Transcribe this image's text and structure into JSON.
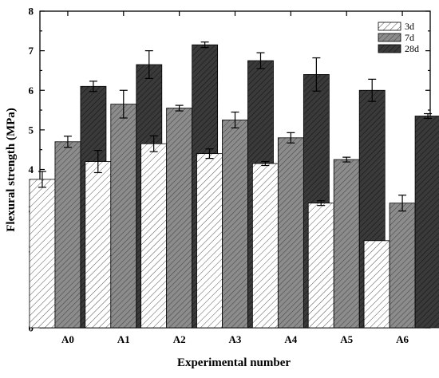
{
  "chart_data": {
    "type": "bar",
    "categories": [
      "A0",
      "A1",
      "A2",
      "A3",
      "A4",
      "A5",
      "A6"
    ],
    "series": [
      {
        "name": "3d",
        "values": [
          3.75,
          4.2,
          4.65,
          4.4,
          4.15,
          3.15,
          2.2
        ],
        "errors": [
          0.2,
          0.28,
          0.2,
          0.12,
          0.05,
          0.06,
          0.0
        ],
        "fill": "hatch-light",
        "color": "#ffffff"
      },
      {
        "name": "7d",
        "values": [
          4.7,
          5.65,
          5.55,
          5.25,
          4.8,
          4.25,
          3.15
        ],
        "errors": [
          0.14,
          0.35,
          0.07,
          0.2,
          0.13,
          0.06,
          0.2
        ],
        "fill": "hatch-medium",
        "color": "#8c8c8c"
      },
      {
        "name": "28d",
        "values": [
          6.1,
          6.65,
          7.15,
          6.75,
          6.4,
          6.0,
          5.35
        ],
        "errors": [
          0.13,
          0.35,
          0.07,
          0.2,
          0.42,
          0.28,
          0.06
        ],
        "fill": "hatch-dark",
        "color": "#3a3a3a"
      }
    ],
    "xlabel": "Experimental number",
    "ylabel": "Flexural strength (MPa)",
    "ylim": [
      0,
      8
    ],
    "yticks": [
      0,
      1,
      2,
      3,
      4,
      5,
      6,
      7,
      8
    ],
    "grid": false,
    "legend": "top-right"
  }
}
